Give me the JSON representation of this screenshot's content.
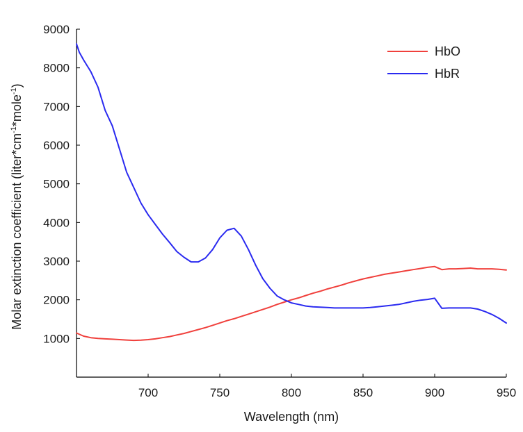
{
  "chart_data": {
    "type": "line",
    "xlabel": "Wavelength (nm)",
    "ylabel": {
      "parts": [
        "Molar extinction coefficient (liter*cm",
        "-1",
        "*mole",
        "-1",
        ")"
      ]
    },
    "xlim": [
      650,
      950
    ],
    "ylim": [
      0,
      9000
    ],
    "x_ticks": [
      "700",
      "750",
      "800",
      "850",
      "900",
      "950"
    ],
    "y_ticks": [
      "1000",
      "2000",
      "3000",
      "4000",
      "5000",
      "6000",
      "7000",
      "8000",
      "9000"
    ],
    "grid": false,
    "legend_position": "top-right",
    "series": [
      {
        "name": "HbO",
        "color": "#f0403c",
        "x": [
          650,
          655,
          660,
          665,
          670,
          675,
          680,
          685,
          690,
          695,
          700,
          705,
          710,
          715,
          720,
          725,
          730,
          735,
          740,
          745,
          750,
          755,
          760,
          765,
          770,
          775,
          780,
          785,
          790,
          795,
          800,
          805,
          810,
          815,
          820,
          825,
          830,
          835,
          840,
          845,
          850,
          855,
          860,
          865,
          870,
          875,
          880,
          885,
          890,
          895,
          900,
          905,
          910,
          915,
          920,
          925,
          930,
          935,
          940,
          945,
          950
        ],
        "values": [
          1140,
          1060,
          1020,
          1000,
          990,
          980,
          970,
          960,
          950,
          955,
          970,
          990,
          1020,
          1050,
          1090,
          1130,
          1180,
          1230,
          1280,
          1340,
          1400,
          1460,
          1510,
          1570,
          1630,
          1690,
          1750,
          1810,
          1880,
          1940,
          2000,
          2050,
          2110,
          2170,
          2220,
          2280,
          2330,
          2380,
          2440,
          2490,
          2540,
          2580,
          2620,
          2660,
          2690,
          2720,
          2750,
          2780,
          2810,
          2840,
          2860,
          2780,
          2800,
          2800,
          2810,
          2820,
          2800,
          2800,
          2800,
          2790,
          2770
        ]
      },
      {
        "name": "HbR",
        "color": "#2a2af0",
        "x": [
          650,
          652,
          655,
          660,
          665,
          670,
          675,
          680,
          685,
          690,
          695,
          700,
          705,
          710,
          715,
          720,
          725,
          730,
          735,
          740,
          745,
          750,
          755,
          760,
          765,
          770,
          775,
          780,
          785,
          790,
          795,
          800,
          805,
          810,
          815,
          820,
          825,
          830,
          835,
          840,
          845,
          850,
          855,
          860,
          865,
          870,
          875,
          880,
          885,
          890,
          895,
          900,
          905,
          910,
          915,
          920,
          925,
          930,
          935,
          940,
          945,
          950
        ],
        "values": [
          8620,
          8400,
          8200,
          7900,
          7500,
          6900,
          6500,
          5900,
          5300,
          4900,
          4500,
          4200,
          3950,
          3700,
          3480,
          3250,
          3100,
          2980,
          2980,
          3080,
          3300,
          3600,
          3800,
          3850,
          3650,
          3300,
          2900,
          2550,
          2300,
          2100,
          2000,
          1920,
          1880,
          1840,
          1820,
          1810,
          1800,
          1790,
          1790,
          1790,
          1790,
          1790,
          1800,
          1820,
          1840,
          1860,
          1880,
          1920,
          1960,
          1990,
          2010,
          2040,
          1780,
          1790,
          1790,
          1790,
          1790,
          1760,
          1700,
          1620,
          1520,
          1400
        ]
      }
    ]
  }
}
